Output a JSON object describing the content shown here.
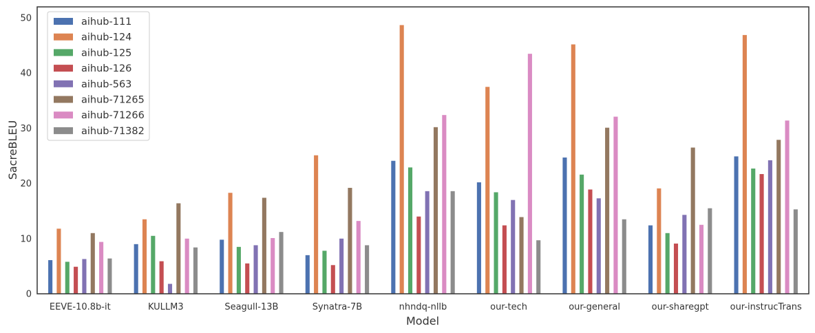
{
  "chart_data": {
    "type": "bar",
    "title": "",
    "xlabel": "Model",
    "ylabel": "SacreBLEU",
    "ylim": [
      0,
      52
    ],
    "yticks": [
      0,
      10,
      20,
      30,
      40,
      50
    ],
    "grid": false,
    "legend_position": "top-left",
    "categories": [
      "EEVE-10.8b-it",
      "KULLM3",
      "Seagull-13B",
      "Synatra-7B",
      "nhndq-nllb",
      "our-tech",
      "our-general",
      "our-sharegpt",
      "our-instrucTrans"
    ],
    "series": [
      {
        "name": "aihub-111",
        "color": "#4c72b0",
        "values": [
          6.1,
          9.0,
          9.8,
          7.0,
          24.1,
          20.2,
          24.7,
          12.4,
          24.9
        ]
      },
      {
        "name": "aihub-124",
        "color": "#dd8452",
        "values": [
          11.8,
          13.5,
          18.3,
          25.1,
          48.7,
          37.5,
          45.2,
          19.1,
          46.9
        ]
      },
      {
        "name": "aihub-125",
        "color": "#55a868",
        "values": [
          5.8,
          10.5,
          8.5,
          7.8,
          22.9,
          18.4,
          21.6,
          11.0,
          22.7
        ]
      },
      {
        "name": "aihub-126",
        "color": "#c44e52",
        "values": [
          4.9,
          5.9,
          5.5,
          5.2,
          14.0,
          12.4,
          18.9,
          9.1,
          21.7
        ]
      },
      {
        "name": "aihub-563",
        "color": "#8172b3",
        "values": [
          6.3,
          1.8,
          8.8,
          10.0,
          18.6,
          17.0,
          17.3,
          14.3,
          24.2
        ]
      },
      {
        "name": "aihub-71265",
        "color": "#937860",
        "values": [
          11.0,
          16.4,
          17.4,
          19.2,
          30.2,
          13.9,
          30.1,
          26.5,
          27.9
        ]
      },
      {
        "name": "aihub-71266",
        "color": "#da8bc3",
        "values": [
          9.4,
          10.0,
          10.1,
          13.2,
          32.4,
          43.5,
          32.1,
          12.5,
          31.4
        ]
      },
      {
        "name": "aihub-71382",
        "color": "#8c8c8c",
        "values": [
          6.4,
          8.4,
          11.2,
          8.8,
          18.6,
          9.7,
          13.5,
          15.5,
          15.3
        ]
      }
    ]
  }
}
